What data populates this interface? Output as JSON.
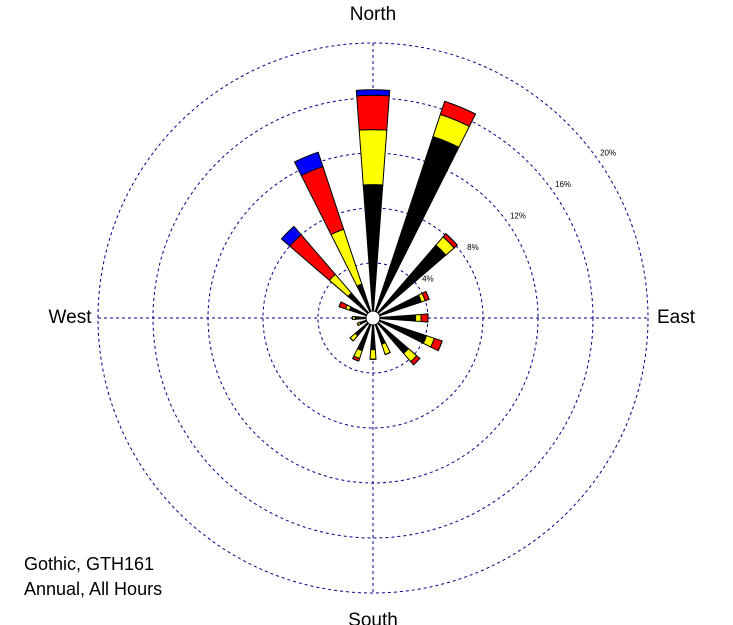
{
  "chart_data": {
    "type": "wind_rose",
    "annotations": [
      "Gothic, GTH161",
      "Annual, All Hours"
    ],
    "categories": [
      "North",
      null,
      null,
      null,
      "East",
      null,
      null,
      null,
      "South",
      null,
      null,
      null,
      "West",
      null,
      null,
      null
    ],
    "series": [
      {
        "color": "#000000",
        "values": [
          9.7,
          13.9,
          7.0,
          3.7,
          3.1,
          4.1,
          3.4,
          2.0,
          2.3,
          2.5,
          1.7,
          1.0,
          1.3,
          1.8,
          2.4,
          2.6
        ]
      },
      {
        "color": "#ffff00",
        "values": [
          4.0,
          1.7,
          0.8,
          0.3,
          0.4,
          0.6,
          0.8,
          0.8,
          0.7,
          0.6,
          0.5,
          0.2,
          0.2,
          0.3,
          1.8,
          4.2
        ]
      },
      {
        "color": "#ff0000",
        "values": [
          2.5,
          1.0,
          0.3,
          0.3,
          0.5,
          0.6,
          0.3,
          0,
          0,
          0.2,
          0,
          0,
          0,
          0.5,
          3.8,
          4.8
        ]
      },
      {
        "color": "#0000ff",
        "values": [
          0.4,
          0,
          0,
          0,
          0,
          0,
          0,
          0,
          0,
          0,
          0,
          0,
          0,
          0,
          0.8,
          1.1
        ]
      }
    ],
    "rlim": [
      0,
      20
    ],
    "rticks": [
      {
        "value": 4,
        "label": "4%"
      },
      {
        "value": 8,
        "label": "8%"
      },
      {
        "value": 12,
        "label": "12%"
      },
      {
        "value": 16,
        "label": "16%"
      },
      {
        "value": 20,
        "label": "20%"
      }
    ],
    "grid": true
  }
}
